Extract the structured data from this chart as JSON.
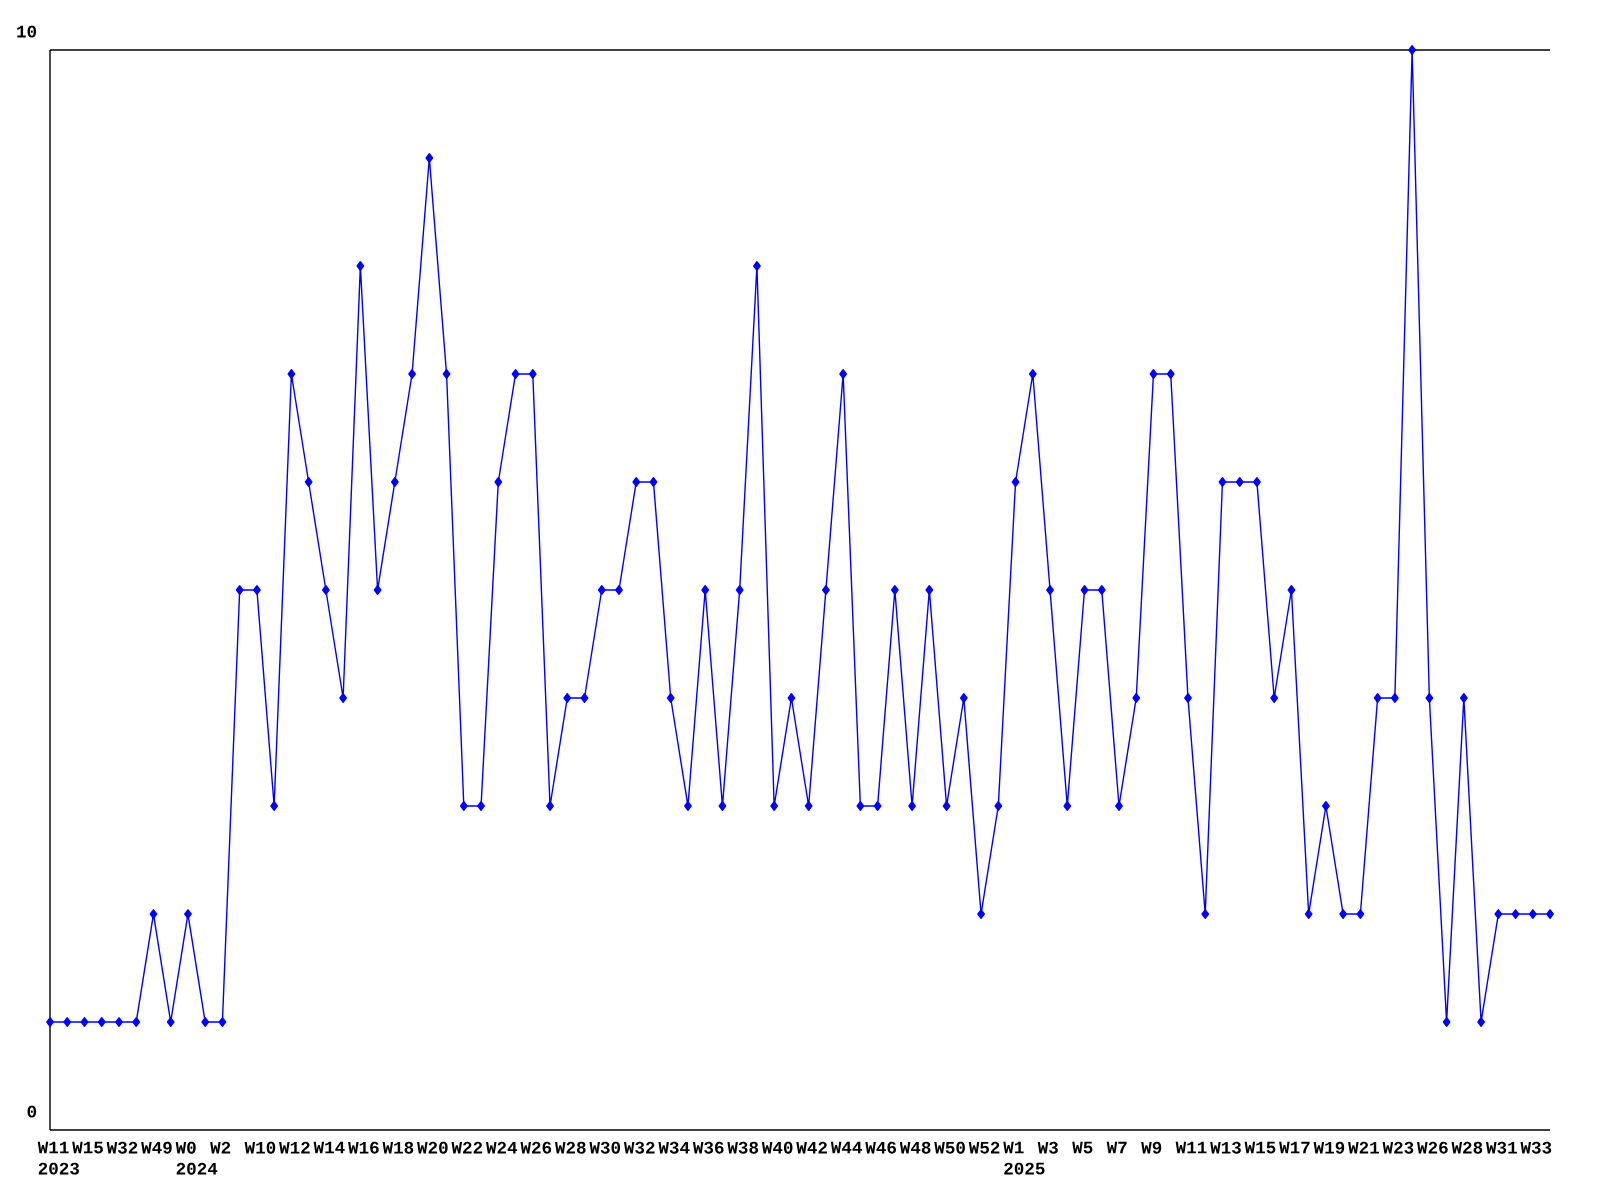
{
  "chart_data": {
    "type": "line",
    "categories": [
      "W11 2023",
      null,
      "W15",
      null,
      "W32",
      null,
      "W49",
      null,
      "W0 2024",
      null,
      "W2",
      null,
      "W10",
      null,
      "W12",
      null,
      "W14",
      null,
      "W16",
      null,
      "W18",
      null,
      "W20",
      null,
      "W22",
      null,
      "W24",
      null,
      "W26",
      null,
      "W28",
      null,
      "W30",
      null,
      "W32",
      null,
      "W34",
      null,
      "W36",
      null,
      "W38",
      null,
      "W40",
      null,
      "W42",
      null,
      "W44",
      null,
      "W46",
      null,
      "W48",
      null,
      "W50",
      null,
      "W52",
      null,
      "W1 2025",
      null,
      "W3",
      null,
      "W5",
      null,
      "W7",
      null,
      "W9",
      null,
      "W11",
      null,
      "W13",
      null,
      "W15",
      null,
      "W17",
      null,
      "W19",
      null,
      "W21",
      null,
      "W23",
      null,
      "W26",
      null,
      "W28",
      null,
      "W31",
      null,
      "W33",
      null
    ],
    "series": [
      {
        "color": "#0000ff",
        "values": [
          1,
          1,
          1,
          1,
          1,
          1,
          2,
          1,
          2,
          1,
          1,
          5,
          5,
          3,
          7,
          6,
          5,
          4,
          8,
          5,
          6,
          7,
          9,
          7,
          3,
          3,
          6,
          7,
          7,
          3,
          4,
          4,
          5,
          5,
          6,
          6,
          4,
          3,
          5,
          3,
          5,
          8,
          3,
          4,
          3,
          5,
          7,
          3,
          3,
          5,
          3,
          5,
          3,
          4,
          2,
          3,
          6,
          7,
          5,
          3,
          5,
          5,
          3,
          4,
          7,
          7,
          4,
          2,
          6,
          6,
          6,
          4,
          5,
          2,
          3,
          2,
          2,
          4,
          4,
          10,
          4,
          1,
          4,
          1,
          2,
          2,
          2,
          2
        ]
      }
    ],
    "ylim": [
      0,
      10
    ],
    "yticks": [
      0,
      10
    ],
    "marker": "diamond",
    "line_style": "solid",
    "grid": false
  }
}
